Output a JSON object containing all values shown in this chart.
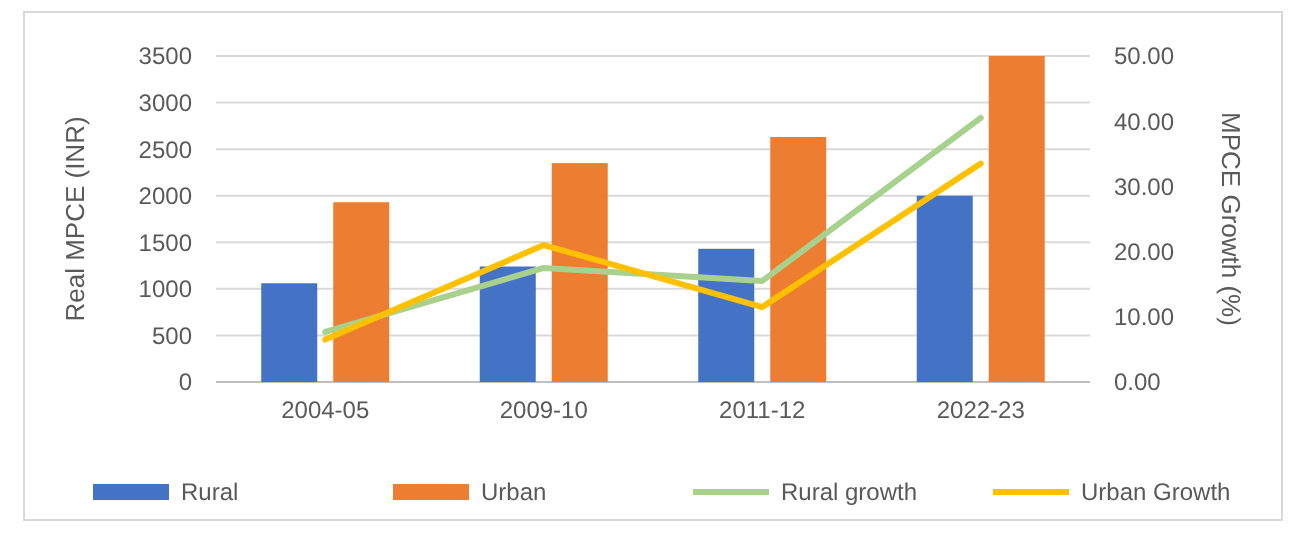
{
  "chart_data": {
    "type": "bar",
    "categories": [
      "2004-05",
      "2009-10",
      "2011-12",
      "2022-23"
    ],
    "ylabel": "Real MPCE (INR)",
    "y2label": "MPCE Growth (%)",
    "ylim": [
      0,
      3500
    ],
    "yticks": [
      0,
      500,
      1000,
      1500,
      2000,
      2500,
      3000,
      3500
    ],
    "y2lim": [
      0,
      50
    ],
    "y2ticks": [
      {
        "value": 0,
        "label": "0.00"
      },
      {
        "value": 10,
        "label": "10.00"
      },
      {
        "value": 20,
        "label": "20.00"
      },
      {
        "value": 30,
        "label": "30.00"
      },
      {
        "value": 40,
        "label": "40.00"
      },
      {
        "value": 50,
        "label": "50.00"
      }
    ],
    "grid": "y",
    "legend": "bottom",
    "series": [
      {
        "name": "Rural",
        "color": "#4472c4",
        "values": [
          1060,
          1240,
          1430,
          2000
        ]
      },
      {
        "name": "Urban",
        "color": "#ed7d31",
        "values": [
          1930,
          2350,
          2630,
          3500
        ]
      },
      {
        "name": "Rural growth",
        "type": "line",
        "axis": "y2",
        "color": "#a9d18e",
        "values": [
          7.7,
          17.5,
          15.5,
          40.5
        ]
      },
      {
        "name": "Urban Growth",
        "type": "line",
        "axis": "y2",
        "color": "#ffc000",
        "values": [
          6.5,
          21,
          11.5,
          33.5
        ]
      }
    ]
  }
}
